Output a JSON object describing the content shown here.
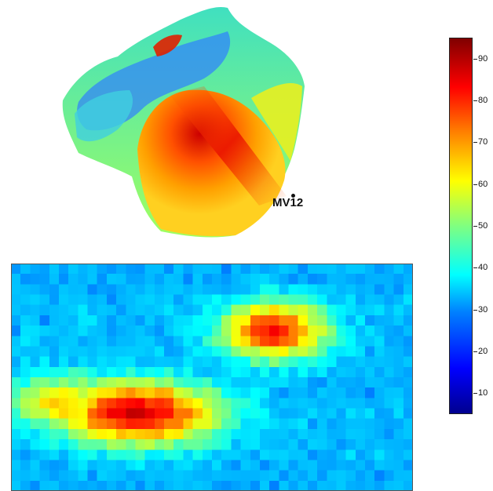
{
  "mesh": {
    "marker_label": "MV12"
  },
  "colorbar": {
    "min": 5,
    "max": 95,
    "tick_labels": [
      "10",
      "20",
      "30",
      "40",
      "50",
      "60",
      "70",
      "80",
      "90"
    ],
    "colormap": "jet"
  },
  "heatmap": {
    "rows": 22,
    "cols": 42,
    "hotspots": [
      {
        "row": 14,
        "col": 13,
        "value": 88,
        "spread_rows": 2.2,
        "spread_cols": 6
      },
      {
        "row": 6,
        "col": 27,
        "value": 82,
        "spread_rows": 2,
        "spread_cols": 4
      },
      {
        "row": 13,
        "col": 5,
        "value": 65,
        "spread_rows": 2,
        "spread_cols": 4
      }
    ],
    "background_value": 30,
    "low_bands": [
      {
        "row": 1,
        "value": 12
      },
      {
        "row": 20,
        "value": 12
      },
      {
        "row": 10,
        "value": 20
      }
    ]
  }
}
